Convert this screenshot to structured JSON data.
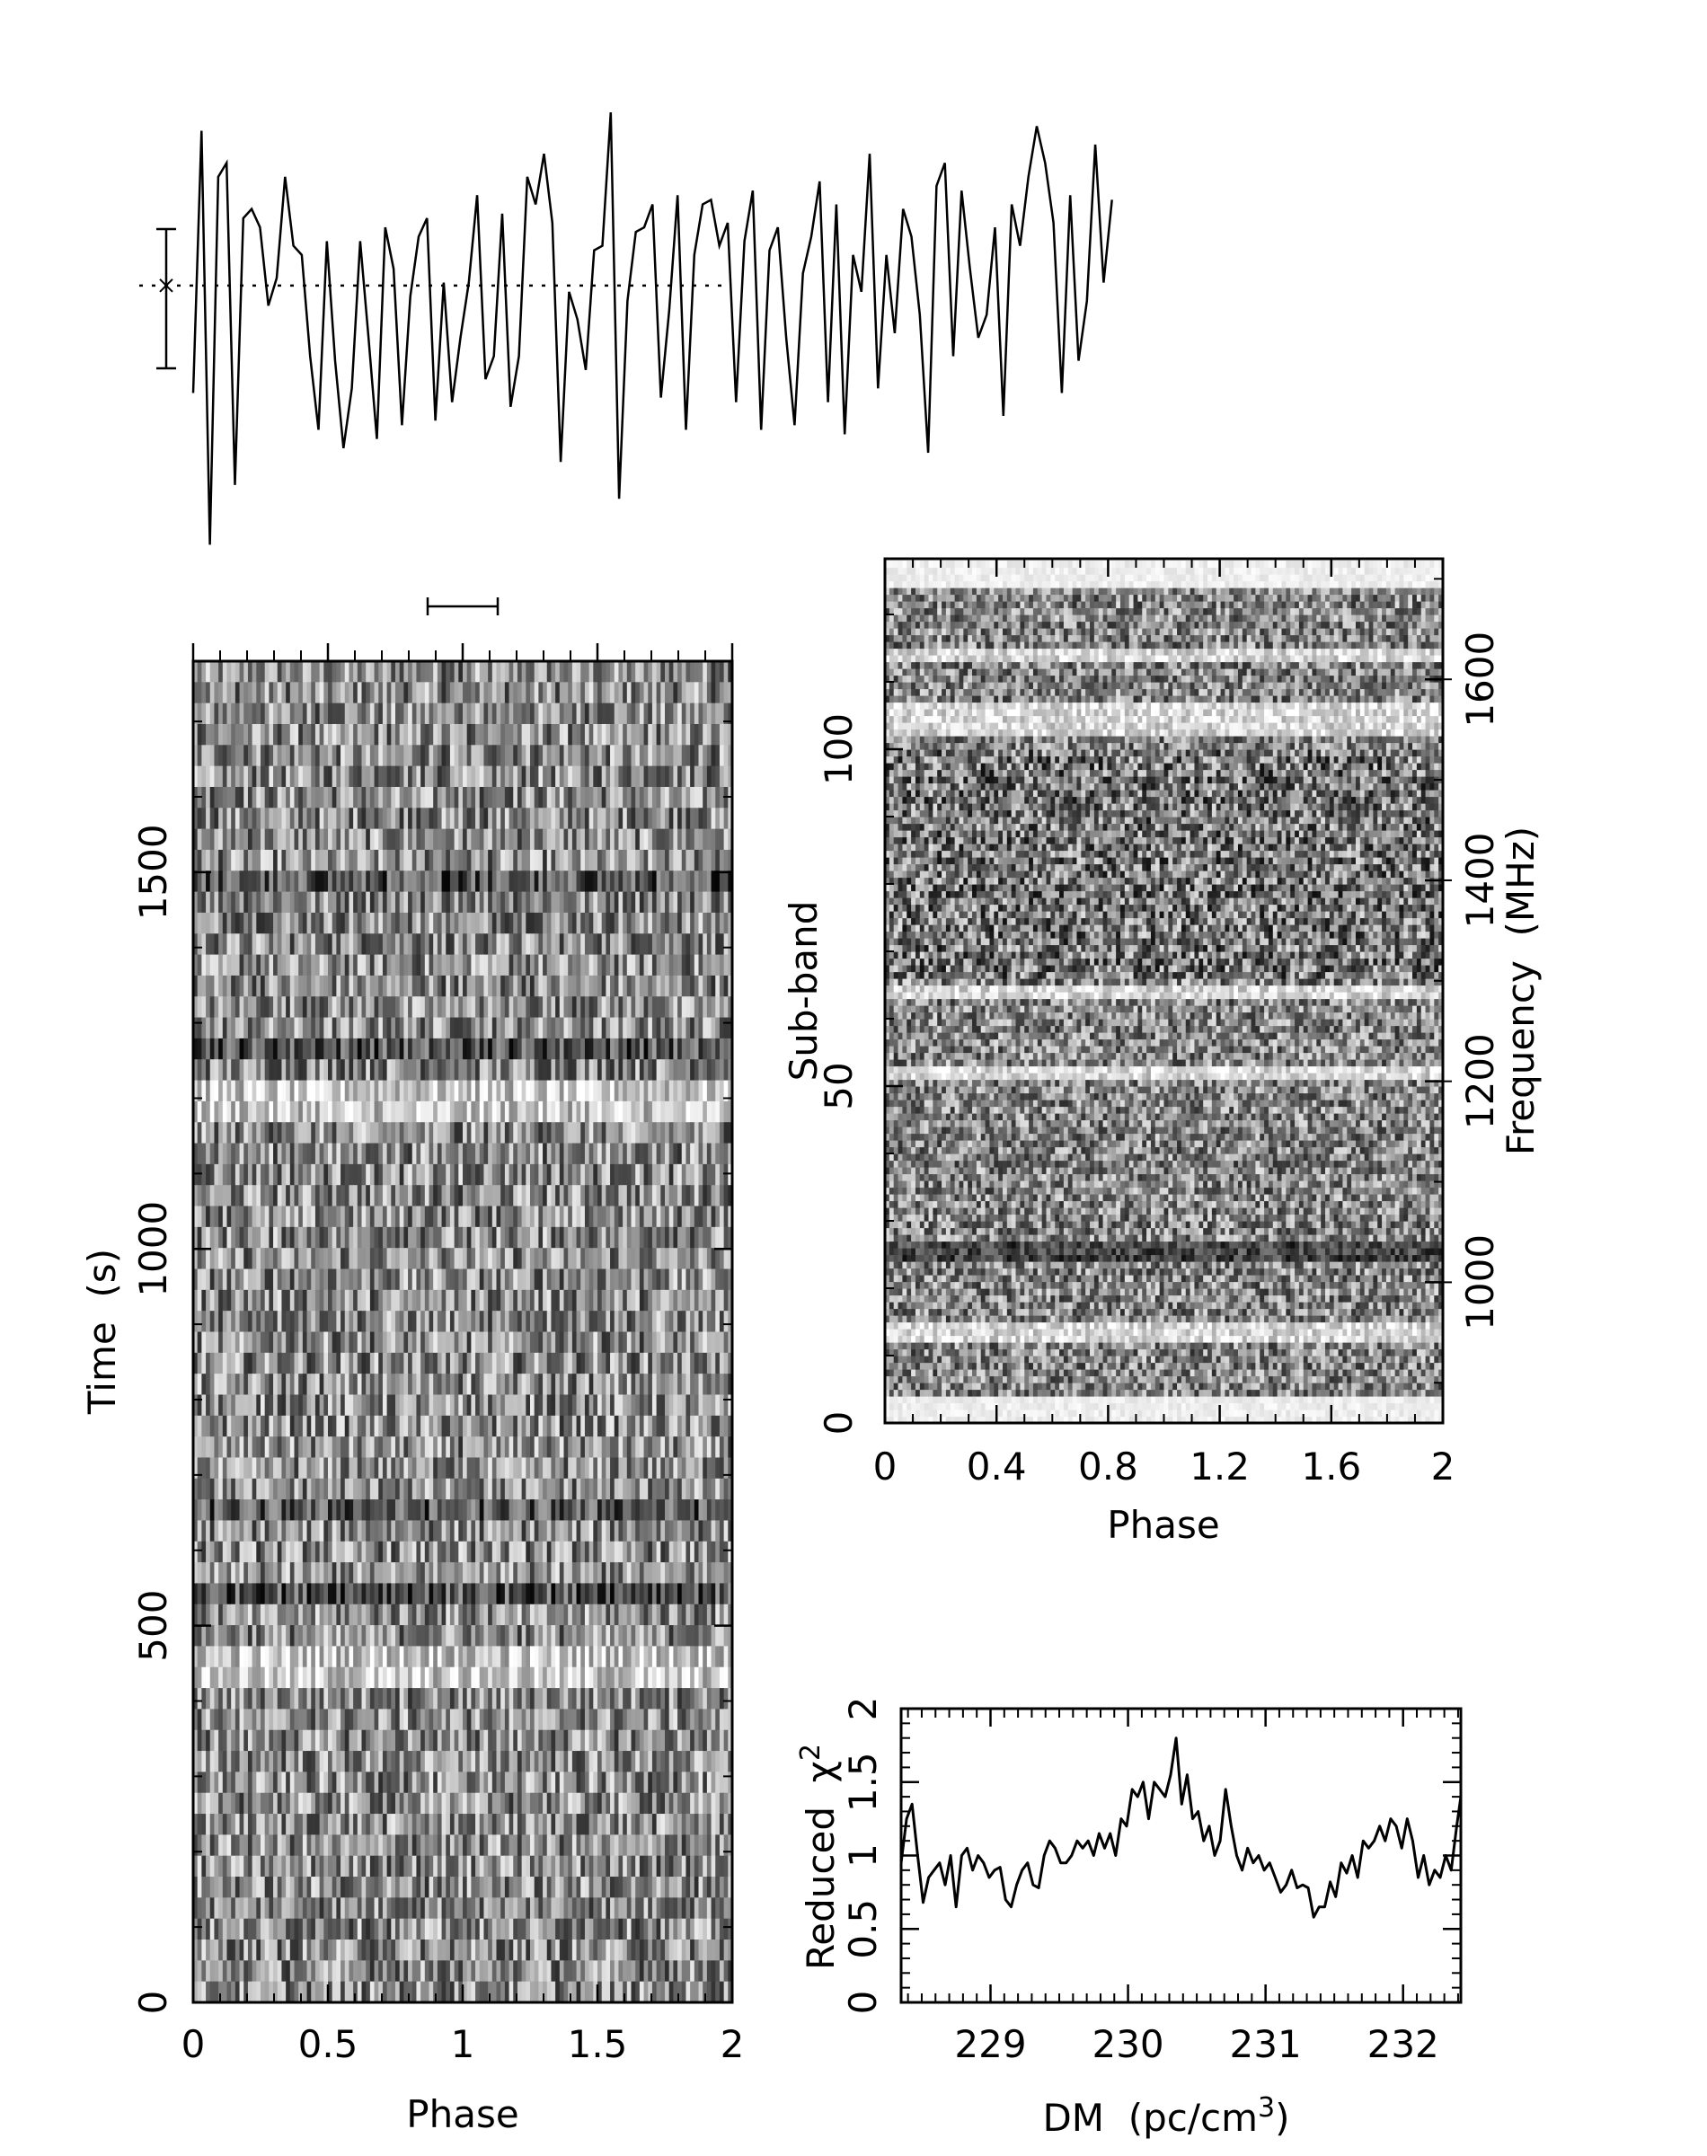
{
  "chart_data": [
    {
      "id": "pulse_profile",
      "type": "line",
      "title": "",
      "xlabel": "",
      "ylabel": "",
      "xlim": [
        0,
        2
      ],
      "x_step": 0.03125,
      "values": [
        0.38,
        0.95,
        0.05,
        0.85,
        0.88,
        0.18,
        0.76,
        0.78,
        0.74,
        0.57,
        0.63,
        0.85,
        0.7,
        0.68,
        0.46,
        0.3,
        0.71,
        0.45,
        0.26,
        0.39,
        0.71,
        0.5,
        0.28,
        0.74,
        0.65,
        0.31,
        0.59,
        0.72,
        0.76,
        0.32,
        0.62,
        0.36,
        0.5,
        0.62,
        0.81,
        0.41,
        0.46,
        0.77,
        0.35,
        0.46,
        0.85,
        0.79,
        0.9,
        0.75,
        0.23,
        0.6,
        0.54,
        0.43,
        0.69,
        0.7,
        0.99,
        0.15,
        0.58,
        0.73,
        0.74,
        0.79,
        0.37,
        0.56,
        0.81,
        0.3,
        0.68,
        0.79,
        0.8,
        0.7,
        0.75,
        0.36,
        0.71,
        0.82,
        0.3,
        0.69,
        0.74,
        0.5,
        0.31,
        0.64,
        0.72,
        0.84,
        0.36,
        0.79,
        0.29,
        0.68,
        0.6,
        0.9,
        0.39,
        0.68,
        0.51,
        0.78,
        0.72,
        0.55,
        0.25,
        0.83,
        0.88,
        0.46,
        0.82,
        0.65,
        0.5,
        0.55,
        0.74,
        0.33,
        0.79,
        0.7,
        0.85,
        0.96,
        0.88,
        0.75,
        0.38,
        0.81,
        0.45,
        0.58,
        0.92,
        0.62,
        0.8
      ],
      "mean_line": "dotted",
      "error_bar": "yes",
      "phase_bar": [
        0.87,
        1.13
      ]
    },
    {
      "id": "time_phase",
      "type": "heatmap",
      "xlabel": "Phase",
      "ylabel": "Time  (s)",
      "xlim": [
        0,
        2
      ],
      "ylim": [
        0,
        1780
      ],
      "xticks": [
        "0",
        "0.5",
        "1",
        "1.5",
        "2"
      ],
      "yticks": [
        "0",
        "500",
        "1000",
        "1500"
      ],
      "colormap": "grayscale",
      "rows": 64,
      "phase_bins": 128,
      "bright_row_bands_s": [
        [
          430,
          470
        ],
        [
          1180,
          1220
        ]
      ],
      "dark_row_bands_s": [
        [
          540,
          560
        ],
        [
          640,
          665
        ],
        [
          1020,
          1040
        ],
        [
          1250,
          1270
        ],
        [
          1470,
          1490
        ]
      ]
    },
    {
      "id": "subband_phase",
      "type": "heatmap",
      "xlabel": "Phase",
      "ylabel": "Sub-band",
      "y2label": "Frequency  (MHz)",
      "xlim": [
        0,
        2
      ],
      "ylim": [
        0,
        128
      ],
      "y2lim": [
        860,
        1720
      ],
      "xticks": [
        "0",
        "0.4",
        "0.8",
        "1.2",
        "1.6",
        "2"
      ],
      "yticks": [
        "0",
        "50",
        "100"
      ],
      "y2ticks": [
        "1000",
        "1200",
        "1400",
        "1600"
      ],
      "colormap": "grayscale",
      "subbands": 128,
      "phase_bins": 128,
      "blank_subbands": [
        [
          0,
          4
        ],
        [
          124,
          128
        ]
      ],
      "bright_subband_bands": [
        [
          12,
          15
        ],
        [
          51,
          53
        ],
        [
          63,
          65
        ],
        [
          102,
          107
        ],
        [
          113,
          115
        ]
      ],
      "dark_subband_bands": [
        [
          24,
          27
        ]
      ]
    },
    {
      "id": "dm_curve",
      "type": "line",
      "xlabel": "DM  (pc/cm",
      "xlabel_sup": "3",
      "xlabel_end": ")",
      "ylabel": "Reduced  χ",
      "ylabel_sup": "2",
      "xlim": [
        228.35,
        232.42
      ],
      "ylim": [
        0,
        2
      ],
      "xticks": [
        "229",
        "230",
        "231",
        "232"
      ],
      "yticks": [
        "0",
        "0.5",
        "1",
        "1.5",
        "2"
      ],
      "x": [
        228.35,
        228.39,
        228.43,
        228.47,
        228.51,
        228.55,
        228.59,
        228.63,
        228.67,
        228.71,
        228.75,
        228.79,
        228.83,
        228.87,
        228.91,
        228.95,
        228.99,
        229.03,
        229.07,
        229.11,
        229.15,
        229.19,
        229.23,
        229.27,
        229.31,
        229.35,
        229.39,
        229.43,
        229.47,
        229.51,
        229.55,
        229.59,
        229.63,
        229.67,
        229.71,
        229.75,
        229.79,
        229.83,
        229.87,
        229.91,
        229.95,
        229.99,
        230.03,
        230.07,
        230.11,
        230.15,
        230.19,
        230.23,
        230.27,
        230.31,
        230.35,
        230.39,
        230.43,
        230.47,
        230.51,
        230.55,
        230.59,
        230.63,
        230.67,
        230.71,
        230.75,
        230.79,
        230.83,
        230.87,
        230.91,
        230.95,
        230.99,
        231.03,
        231.07,
        231.11,
        231.15,
        231.19,
        231.23,
        231.27,
        231.31,
        231.35,
        231.39,
        231.43,
        231.47,
        231.51,
        231.55,
        231.59,
        231.63,
        231.67,
        231.71,
        231.75,
        231.79,
        231.83,
        231.87,
        231.91,
        231.95,
        231.99,
        232.03,
        232.07,
        232.11,
        232.15,
        232.19,
        232.23,
        232.27,
        232.31,
        232.35,
        232.39,
        232.42
      ],
      "y": [
        0.95,
        1.25,
        1.35,
        1.0,
        0.68,
        0.85,
        0.9,
        0.95,
        0.8,
        1.0,
        0.65,
        1.0,
        1.05,
        0.9,
        1.0,
        0.95,
        0.85,
        0.9,
        0.92,
        0.7,
        0.65,
        0.8,
        0.9,
        0.95,
        0.8,
        0.78,
        1.0,
        1.1,
        1.05,
        0.95,
        0.95,
        1.0,
        1.1,
        1.05,
        1.1,
        1.0,
        1.15,
        1.05,
        1.15,
        1.0,
        1.25,
        1.2,
        1.45,
        1.4,
        1.5,
        1.25,
        1.5,
        1.45,
        1.4,
        1.55,
        1.8,
        1.35,
        1.55,
        1.25,
        1.3,
        1.1,
        1.2,
        1.0,
        1.1,
        1.45,
        1.2,
        1.0,
        0.9,
        1.05,
        0.95,
        1.0,
        0.9,
        0.95,
        0.85,
        0.75,
        0.8,
        0.9,
        0.78,
        0.8,
        0.78,
        0.58,
        0.65,
        0.65,
        0.82,
        0.72,
        0.95,
        0.88,
        1.0,
        0.85,
        1.1,
        1.05,
        1.1,
        1.2,
        1.1,
        1.25,
        1.2,
        1.05,
        1.25,
        1.1,
        0.85,
        1.0,
        0.8,
        0.9,
        0.85,
        1.0,
        0.9,
        1.2,
        1.4
      ]
    }
  ]
}
